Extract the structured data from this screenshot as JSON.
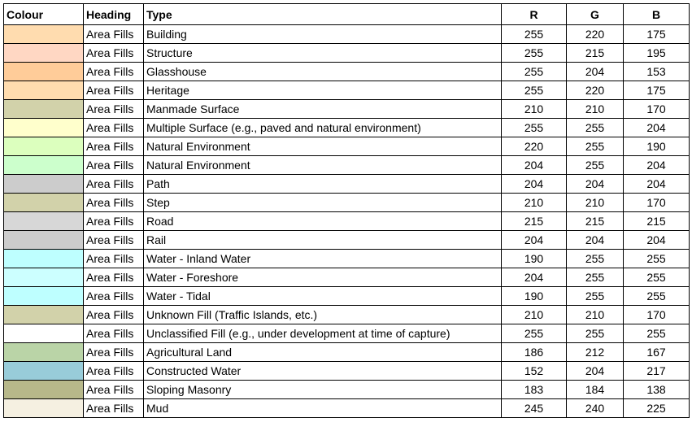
{
  "table": {
    "header": [
      "Colour",
      "Heading",
      "Type",
      "R",
      "G",
      "B"
    ],
    "rows": [
      [
        "Area Fills",
        "Building",
        255,
        220,
        175
      ],
      [
        "Area Fills",
        "Structure",
        255,
        215,
        195
      ],
      [
        "Area Fills",
        "Glasshouse",
        255,
        204,
        153
      ],
      [
        "Area Fills",
        "Heritage",
        255,
        220,
        175
      ],
      [
        "Area Fills",
        "Manmade Surface",
        210,
        210,
        170
      ],
      [
        "Area Fills",
        "Multiple Surface (e.g., paved and natural environment)",
        255,
        255,
        204
      ],
      [
        "Area Fills",
        "Natural Environment",
        220,
        255,
        190
      ],
      [
        "Area Fills",
        "Natural Environment",
        204,
        255,
        204
      ],
      [
        "Area Fills",
        "Path",
        204,
        204,
        204
      ],
      [
        "Area Fills",
        "Step",
        210,
        210,
        170
      ],
      [
        "Area Fills",
        "Road",
        215,
        215,
        215
      ],
      [
        "Area Fills",
        "Rail",
        204,
        204,
        204
      ],
      [
        "Area Fills",
        "Water - Inland Water",
        190,
        255,
        255
      ],
      [
        "Area Fills",
        "Water - Foreshore",
        204,
        255,
        255
      ],
      [
        "Area Fills",
        "Water - Tidal",
        190,
        255,
        255
      ],
      [
        "Area Fills",
        "Unknown Fill (Traffic Islands, etc.)",
        210,
        210,
        170
      ],
      [
        "Area Fills",
        "Unclassified Fill (e.g., under development at time of capture)",
        255,
        255,
        255
      ],
      [
        "Area Fills",
        "Agricultural Land",
        186,
        212,
        167
      ],
      [
        "Area Fills",
        "Constructed Water",
        152,
        204,
        217
      ],
      [
        "Area Fills",
        "Sloping Masonry",
        183,
        184,
        138
      ],
      [
        "Area Fills",
        "Mud",
        245,
        240,
        225
      ]
    ]
  }
}
